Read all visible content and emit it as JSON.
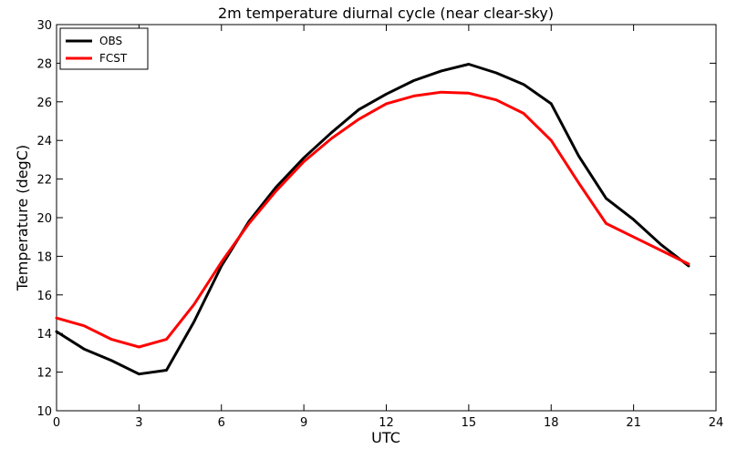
{
  "chart_data": {
    "type": "line",
    "title": "2m temperature diurnal cycle (near clear-sky)",
    "xlabel": "UTC",
    "ylabel": "Temperature (degC)",
    "xlim": [
      0,
      24
    ],
    "ylim": [
      10,
      30
    ],
    "xticks": [
      0,
      3,
      6,
      9,
      12,
      15,
      18,
      21,
      24
    ],
    "yticks": [
      10,
      12,
      14,
      16,
      18,
      20,
      22,
      24,
      26,
      28,
      30
    ],
    "grid": false,
    "legend_position": "top-left",
    "x": [
      0,
      1,
      2,
      3,
      4,
      5,
      6,
      7,
      8,
      9,
      10,
      11,
      12,
      13,
      14,
      15,
      16,
      17,
      18,
      19,
      20,
      21,
      22,
      23
    ],
    "series": [
      {
        "name": "OBS",
        "color": "#000000",
        "values": [
          14.1,
          13.2,
          12.6,
          11.9,
          12.1,
          14.6,
          17.5,
          19.8,
          21.6,
          23.1,
          24.4,
          25.6,
          26.4,
          27.1,
          27.6,
          27.95,
          27.5,
          26.9,
          25.9,
          23.2,
          21.0,
          19.9,
          18.6,
          17.5
        ]
      },
      {
        "name": "FCST",
        "color": "#ff0000",
        "values": [
          14.8,
          14.4,
          13.7,
          13.3,
          13.7,
          15.5,
          17.7,
          19.7,
          21.4,
          22.9,
          24.1,
          25.1,
          25.9,
          26.3,
          26.5,
          26.45,
          26.1,
          25.4,
          24.0,
          21.8,
          19.7,
          19.0,
          18.3,
          17.6
        ]
      }
    ]
  }
}
